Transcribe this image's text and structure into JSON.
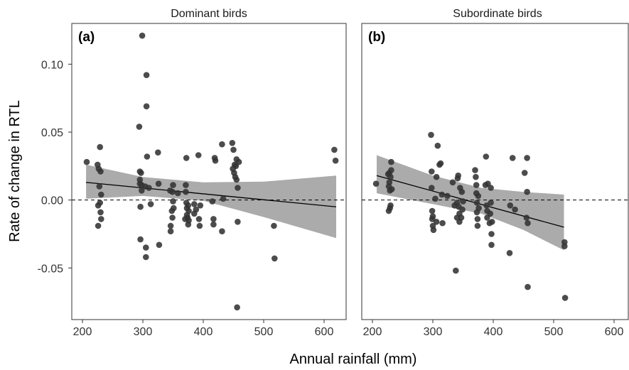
{
  "chart_data": {
    "type": "scatter",
    "xlabel": "Annual rainfall (mm)",
    "ylabel": "Rate of change in RTL",
    "xlim": [
      190,
      630
    ],
    "ylim": [
      -0.088,
      0.13
    ],
    "x_ticks": [
      "200",
      "300",
      "400",
      "500",
      "600"
    ],
    "x_tick_values": [
      200,
      300,
      400,
      500,
      600
    ],
    "y_ticks": [
      "-0.05",
      "0.00",
      "0.05",
      "0.10"
    ],
    "y_tick_values": [
      -0.05,
      0,
      0.05,
      0.1
    ],
    "reference_line_y": 0,
    "reference_line_style": "dashed",
    "grid": false,
    "point_color": "#333333",
    "band_color": "#a6a6a6",
    "panels": [
      {
        "title": "Dominant birds",
        "tag": "(a)",
        "trend": {
          "x": [
            206,
            620
          ],
          "y": [
            0.013,
            -0.005
          ]
        },
        "ci_band": {
          "x": [
            206,
            300,
            400,
            500,
            620
          ],
          "upper": [
            0.026,
            0.017,
            0.013,
            0.0135,
            0.018
          ],
          "lower": [
            0.001,
            0.003,
            -0.0005,
            -0.0125,
            -0.028
          ]
        },
        "points": [
          [
            207,
            0.028
          ],
          [
            225,
            0.026
          ],
          [
            226,
            -0.019
          ],
          [
            226,
            -0.004
          ],
          [
            227,
            0.023
          ],
          [
            228,
            0.01
          ],
          [
            229,
            -0.002
          ],
          [
            229,
            0.039
          ],
          [
            230,
            -0.009
          ],
          [
            230,
            0.021
          ],
          [
            231,
            0.004
          ],
          [
            231,
            -0.014
          ],
          [
            294,
            0.054
          ],
          [
            295,
            0.021
          ],
          [
            295,
            0.015
          ],
          [
            295,
            0.012
          ],
          [
            296,
            -0.005
          ],
          [
            296,
            -0.029
          ],
          [
            297,
            0.02
          ],
          [
            298,
            0.011
          ],
          [
            298,
            0.007
          ],
          [
            299,
            0.121
          ],
          [
            304,
            0.01
          ],
          [
            305,
            -0.035
          ],
          [
            305,
            -0.042
          ],
          [
            306,
            0.092
          ],
          [
            306,
            0.069
          ],
          [
            307,
            0.032
          ],
          [
            310,
            0.009
          ],
          [
            313,
            -0.003
          ],
          [
            325,
            0.035
          ],
          [
            326,
            0.012
          ],
          [
            327,
            -0.033
          ],
          [
            345,
            0.007
          ],
          [
            346,
            -0.023
          ],
          [
            346,
            -0.019
          ],
          [
            348,
            -0.008
          ],
          [
            349,
            0.006
          ],
          [
            349,
            -0.013
          ],
          [
            350,
            0.011
          ],
          [
            350,
            -0.001
          ],
          [
            351,
            -0.006
          ],
          [
            358,
            0.005
          ],
          [
            370,
            -0.014
          ],
          [
            371,
            0.011
          ],
          [
            371,
            0.006
          ],
          [
            372,
            0.031
          ],
          [
            372,
            -0.002
          ],
          [
            373,
            -0.006
          ],
          [
            373,
            -0.011
          ],
          [
            374,
            -0.013
          ],
          [
            375,
            -0.018
          ],
          [
            375,
            -0.004
          ],
          [
            376,
            -0.008
          ],
          [
            376,
            -0.015
          ],
          [
            385,
            -0.003
          ],
          [
            385,
            -0.01
          ],
          [
            388,
            -0.007
          ],
          [
            392,
            0.033
          ],
          [
            393,
            -0.014
          ],
          [
            394,
            -0.019
          ],
          [
            395,
            -0.004
          ],
          [
            415,
            -0.001
          ],
          [
            417,
            -0.014
          ],
          [
            417,
            -0.018
          ],
          [
            419,
            0.031
          ],
          [
            420,
            0.029
          ],
          [
            431,
            0.041
          ],
          [
            431,
            -0.023
          ],
          [
            433,
            0.001
          ],
          [
            448,
            0.042
          ],
          [
            449,
            0.023
          ],
          [
            450,
            0.037
          ],
          [
            451,
            0.02
          ],
          [
            452,
            0.026
          ],
          [
            453,
            0.017
          ],
          [
            454,
            0.025
          ],
          [
            455,
            0.03
          ],
          [
            455,
            0.015
          ],
          [
            456,
            -0.079
          ],
          [
            457,
            0.009
          ],
          [
            457,
            -0.016
          ],
          [
            459,
            0.028
          ],
          [
            517,
            -0.019
          ],
          [
            518,
            -0.043
          ],
          [
            617,
            0.037
          ],
          [
            619,
            0.029
          ]
        ]
      },
      {
        "title": "Subordinate birds",
        "tag": "(b)",
        "trend": {
          "x": [
            207,
            517
          ],
          "y": [
            0.018,
            -0.02
          ]
        },
        "ci_band": {
          "x": [
            207,
            300,
            380,
            450,
            517
          ],
          "upper": [
            0.033,
            0.018,
            0.009,
            0.006,
            0.004
          ],
          "lower": [
            0.005,
            -0.003,
            -0.01,
            -0.022,
            -0.037
          ]
        },
        "points": [
          [
            206,
            0.012
          ],
          [
            226,
            0.019
          ],
          [
            227,
            0.01
          ],
          [
            227,
            -0.008
          ],
          [
            228,
            0.02
          ],
          [
            228,
            0.013
          ],
          [
            229,
            -0.006
          ],
          [
            229,
            0.007
          ],
          [
            230,
            0.017
          ],
          [
            230,
            -0.004
          ],
          [
            231,
            0.028
          ],
          [
            231,
            0.022
          ],
          [
            232,
            0.008
          ],
          [
            297,
            0.048
          ],
          [
            298,
            0.021
          ],
          [
            298,
            0.009
          ],
          [
            299,
            -0.008
          ],
          [
            299,
            -0.014
          ],
          [
            300,
            -0.019
          ],
          [
            300,
            -0.012
          ],
          [
            301,
            -0.022
          ],
          [
            304,
            0.001
          ],
          [
            306,
            0.017
          ],
          [
            306,
            -0.016
          ],
          [
            308,
            0.04
          ],
          [
            311,
            0.026
          ],
          [
            313,
            0.027
          ],
          [
            315,
            0.004
          ],
          [
            316,
            -0.017
          ],
          [
            324,
            0.003
          ],
          [
            333,
            0.013
          ],
          [
            336,
            -0.004
          ],
          [
            338,
            -0.052
          ],
          [
            340,
            -0.002
          ],
          [
            340,
            -0.013
          ],
          [
            341,
            0.016
          ],
          [
            342,
            0.018
          ],
          [
            343,
            -0.005
          ],
          [
            344,
            -0.01
          ],
          [
            344,
            -0.016
          ],
          [
            345,
            0.009
          ],
          [
            347,
            -0.013
          ],
          [
            348,
            0.006
          ],
          [
            349,
            -0.007
          ],
          [
            350,
            -0.001
          ],
          [
            370,
            0.022
          ],
          [
            371,
            0.017
          ],
          [
            372,
            0.011
          ],
          [
            372,
            0.005
          ],
          [
            373,
            -0.002
          ],
          [
            373,
            -0.009
          ],
          [
            374,
            -0.014
          ],
          [
            374,
            -0.019
          ],
          [
            375,
            0.003
          ],
          [
            376,
            -0.006
          ],
          [
            387,
            0.011
          ],
          [
            388,
            0.032
          ],
          [
            389,
            -0.004
          ],
          [
            390,
            -0.008
          ],
          [
            390,
            -0.013
          ],
          [
            391,
            0.012
          ],
          [
            394,
            -0.017
          ],
          [
            395,
            -0.01
          ],
          [
            396,
            0.009
          ],
          [
            396,
            -0.002
          ],
          [
            397,
            -0.025
          ],
          [
            397,
            -0.033
          ],
          [
            398,
            -0.016
          ],
          [
            427,
            -0.039
          ],
          [
            428,
            -0.004
          ],
          [
            432,
            0.031
          ],
          [
            436,
            -0.007
          ],
          [
            452,
            0.02
          ],
          [
            455,
            -0.013
          ],
          [
            456,
            0.031
          ],
          [
            456,
            0.006
          ],
          [
            457,
            -0.064
          ],
          [
            457,
            -0.017
          ],
          [
            518,
            -0.031
          ],
          [
            518,
            -0.034
          ],
          [
            519,
            -0.072
          ]
        ]
      }
    ]
  }
}
